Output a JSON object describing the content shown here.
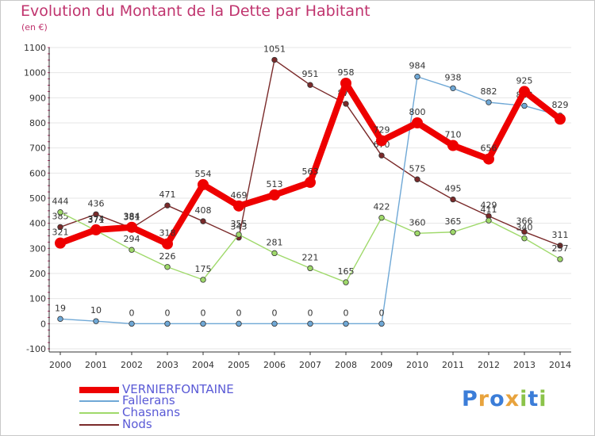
{
  "title": "Evolution du Montant de la Dette par Habitant",
  "subtitle": "(en €)",
  "colors": {
    "title": "#c0346e",
    "axis": "#333333",
    "axis_label": "#333333",
    "grid": "#e6e6e6",
    "ticks_red": "#c0346e"
  },
  "watermark": {
    "text": "Proxiti",
    "letters": [
      {
        "char": "P",
        "color": "#3b7dd8"
      },
      {
        "char": "r",
        "color": "#e8a33d"
      },
      {
        "char": "o",
        "color": "#3b7dd8"
      },
      {
        "char": "x",
        "color": "#e8a33d"
      },
      {
        "char": "i",
        "color": "#8bc34a"
      },
      {
        "char": "t",
        "color": "#3b7dd8"
      },
      {
        "char": "i",
        "color": "#8bc34a"
      }
    ]
  },
  "chart_data": {
    "type": "line",
    "title": "Evolution du Montant de la Dette par Habitant",
    "subtitle": "(en €)",
    "x": [
      "2000",
      "2001",
      "2002",
      "2003",
      "2004",
      "2005",
      "2006",
      "2007",
      "2008",
      "2009",
      "2010",
      "2011",
      "2012",
      "2013",
      "2014"
    ],
    "ylim": [
      -100,
      1100
    ],
    "yticks": [
      -100,
      0,
      100,
      200,
      300,
      400,
      500,
      600,
      700,
      800,
      900,
      1000,
      1100
    ],
    "grid": "horizontal",
    "legend_position": "bottom-left",
    "series": [
      {
        "name": "VERNIERFONTAINE",
        "color": "#ee0000",
        "thick": true,
        "values": [
          321,
          374,
          384,
          318,
          554,
          469,
          513,
          563,
          958,
          729,
          800,
          710,
          656,
          925,
          815
        ],
        "labels": [
          "321",
          "374",
          "384",
          "318",
          "554",
          "469",
          "513",
          "563",
          "958",
          "729",
          "800",
          "710",
          "656",
          "925",
          ""
        ]
      },
      {
        "name": "Fallerans",
        "color": "#6fa8d6",
        "thick": false,
        "values": [
          19,
          10,
          0,
          0,
          0,
          0,
          0,
          0,
          0,
          0,
          984,
          938,
          882,
          868,
          829
        ],
        "labels": [
          "19",
          "10",
          "0",
          "0",
          "0",
          "0",
          "0",
          "0",
          "0",
          "0",
          "984",
          "938",
          "882",
          "868",
          "829"
        ]
      },
      {
        "name": "Chasnans",
        "color": "#9fd96a",
        "thick": false,
        "values": [
          444,
          371,
          294,
          226,
          175,
          355,
          281,
          221,
          165,
          422,
          360,
          365,
          411,
          340,
          257
        ],
        "labels": [
          "444",
          "371",
          "294",
          "226",
          "175",
          "355",
          "281",
          "221",
          "165",
          "422",
          "360",
          "365",
          "411",
          "340",
          "257"
        ]
      },
      {
        "name": "Nods",
        "color": "#7a2a2a",
        "thick": false,
        "values": [
          385,
          436,
          381,
          471,
          408,
          343,
          1051,
          951,
          876,
          670,
          575,
          495,
          429,
          366,
          311
        ],
        "labels": [
          "385",
          "436",
          "381",
          "471",
          "408",
          "343",
          "1051",
          "951",
          "876",
          "670",
          "575",
          "495",
          "429",
          "366",
          "311"
        ]
      }
    ]
  }
}
